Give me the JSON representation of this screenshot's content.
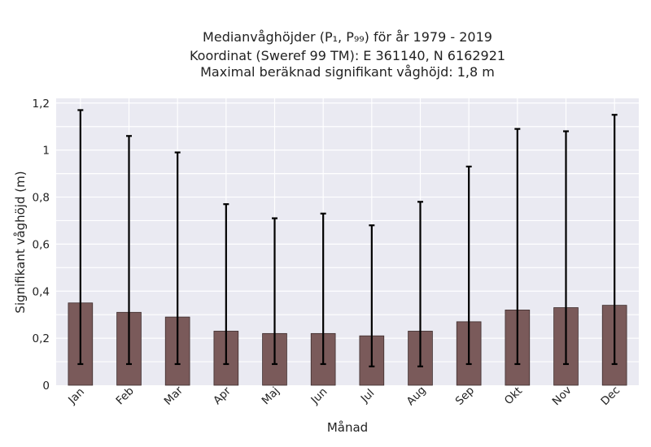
{
  "chart_data": {
    "type": "bar",
    "title_lines": [
      "Medianvåghöjder (P₁, P₉₉) för år 1979 - 2019",
      "Koordinat (Sweref 99 TM): E 361140, N 6162921",
      "Maximal beräknad signifikant våghöjd: 1,8 m"
    ],
    "xlabel": "Månad",
    "ylabel": "Signifikant våghöjd (m)",
    "categories": [
      "Jan",
      "Feb",
      "Mar",
      "Apr",
      "Maj",
      "Jun",
      "Jul",
      "Aug",
      "Sep",
      "Okt",
      "Nov",
      "Dec"
    ],
    "values": [
      0.35,
      0.31,
      0.29,
      0.23,
      0.22,
      0.22,
      0.21,
      0.23,
      0.27,
      0.32,
      0.33,
      0.34
    ],
    "err_low": [
      0.09,
      0.09,
      0.09,
      0.09,
      0.09,
      0.09,
      0.08,
      0.08,
      0.09,
      0.09,
      0.09,
      0.09
    ],
    "err_high": [
      1.17,
      1.06,
      0.99,
      0.77,
      0.71,
      0.73,
      0.68,
      0.78,
      0.93,
      1.09,
      1.08,
      1.15
    ],
    "ylim": [
      0,
      1.22
    ],
    "yticks": [
      0,
      0.2,
      0.4,
      0.6,
      0.8,
      1,
      1.2
    ],
    "ytick_labels": [
      "0",
      "0,2",
      "0,4",
      "0,6",
      "0,8",
      "1",
      "1,2"
    ],
    "grid": true,
    "bar_color": "#7a5a5a",
    "plot_bg": "#eaeaf2"
  }
}
